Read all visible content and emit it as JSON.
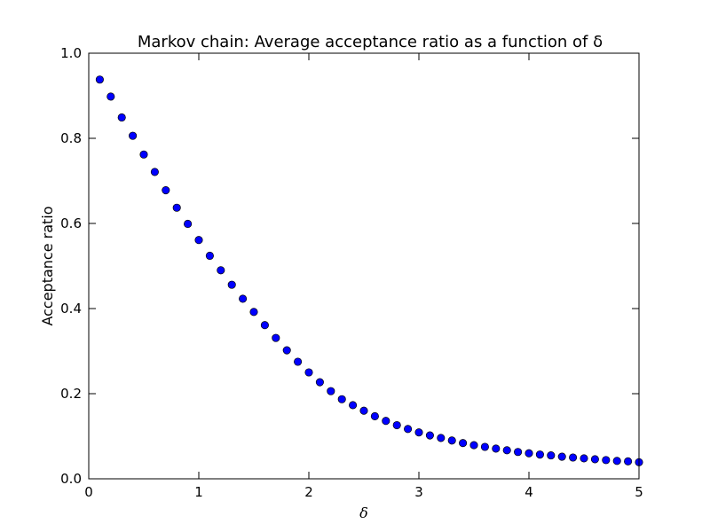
{
  "chart_data": {
    "type": "scatter",
    "title": "Markov chain: Average acceptance ratio as a function of δ",
    "xlabel": "δ",
    "ylabel": "Acceptance ratio",
    "xlim": [
      0,
      5
    ],
    "ylim": [
      0,
      1.0
    ],
    "x_ticks": [
      "0",
      "1",
      "2",
      "3",
      "4",
      "5"
    ],
    "y_ticks": [
      "0.0",
      "0.2",
      "0.4",
      "0.6",
      "0.8",
      "1.0"
    ],
    "grid": false,
    "marker_color": "#0000ff",
    "marker_edge_color": "#000000",
    "x": [
      0.1,
      0.2,
      0.3,
      0.4,
      0.5,
      0.6,
      0.7,
      0.8,
      0.9,
      1.0,
      1.1,
      1.2,
      1.3,
      1.4,
      1.5,
      1.6,
      1.7,
      1.8,
      1.9,
      2.0,
      2.1,
      2.2,
      2.3,
      2.4,
      2.5,
      2.6,
      2.7,
      2.8,
      2.9,
      3.0,
      3.1,
      3.2,
      3.3,
      3.4,
      3.5,
      3.6,
      3.7,
      3.8,
      3.9,
      4.0,
      4.1,
      4.2,
      4.3,
      4.4,
      4.5,
      4.6,
      4.7,
      4.8,
      4.9,
      5.0
    ],
    "y": [
      0.938,
      0.898,
      0.849,
      0.806,
      0.762,
      0.721,
      0.678,
      0.637,
      0.599,
      0.561,
      0.524,
      0.49,
      0.456,
      0.423,
      0.392,
      0.361,
      0.331,
      0.302,
      0.275,
      0.25,
      0.227,
      0.206,
      0.187,
      0.173,
      0.16,
      0.147,
      0.136,
      0.126,
      0.117,
      0.109,
      0.102,
      0.096,
      0.09,
      0.084,
      0.079,
      0.075,
      0.071,
      0.067,
      0.063,
      0.06,
      0.057,
      0.055,
      0.052,
      0.05,
      0.048,
      0.046,
      0.044,
      0.042,
      0.041,
      0.039
    ]
  }
}
